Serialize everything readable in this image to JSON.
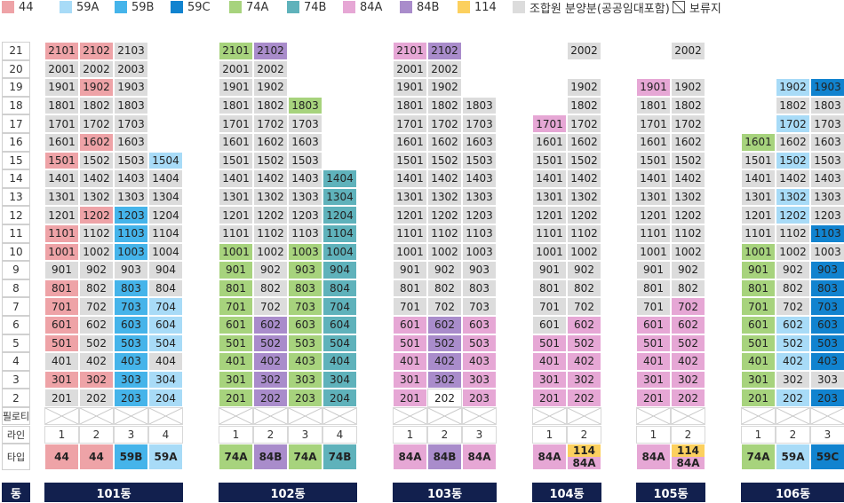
{
  "legend": [
    {
      "label": "44",
      "color": "#eea3a7",
      "icon": null
    },
    {
      "label": "59A",
      "color": "#a8dbf7",
      "icon": null
    },
    {
      "label": "59B",
      "color": "#45b4ea",
      "icon": null
    },
    {
      "label": "59C",
      "color": "#1183cf",
      "icon": null
    },
    {
      "label": "74A",
      "color": "#a7d37d",
      "icon": null
    },
    {
      "label": "74B",
      "color": "#5fb2bb",
      "icon": null
    },
    {
      "label": "84A",
      "color": "#e6a7d5",
      "icon": null
    },
    {
      "label": "84B",
      "color": "#a98ccb",
      "icon": null
    },
    {
      "label": "114",
      "color": "#fcd05e",
      "icon": null
    },
    {
      "label": "조합원 분양분(공공임대포함)",
      "color": "#dcdcdc",
      "icon": null
    },
    {
      "label": "보류지",
      "color": "#ffffff",
      "icon": "hatched-box-icon"
    }
  ],
  "colors": {
    "44": "#eea3a7",
    "59A": "#a8dbf7",
    "59B": "#45b4ea",
    "59C": "#1183cf",
    "74A": "#a7d37d",
    "74B": "#5fb2bb",
    "84A": "#e6a7d5",
    "84B": "#a98ccb",
    "114": "#fcd05e",
    "G": "#dcdcdc",
    "R": "#ffffff",
    "navy": "#12204e"
  },
  "row_labels": {
    "floors": [
      "21",
      "20",
      "19",
      "18",
      "17",
      "16",
      "15",
      "14",
      "13",
      "12",
      "11",
      "10",
      "9",
      "8",
      "7",
      "6",
      "5",
      "4",
      "3",
      "2"
    ],
    "piloti": "필로티",
    "line": "라인",
    "type": "타입",
    "dong": "동"
  },
  "buildings": [
    {
      "name": "101동",
      "lines": [
        "1",
        "2",
        "3",
        "4"
      ],
      "types": [
        {
          "text": "44",
          "c": "44"
        },
        {
          "text": "44",
          "c": "44"
        },
        {
          "text": "59B",
          "c": "59B"
        },
        {
          "text": "59A",
          "c": "59A"
        }
      ],
      "units": [
        [
          "2101:44",
          "2102:44",
          "2103:G",
          null
        ],
        [
          "2001:G",
          "2002:G",
          "2003:G",
          null
        ],
        [
          "1901:G",
          "1902:44",
          "1903:G",
          null
        ],
        [
          "1801:G",
          "1802:G",
          "1803:G",
          null
        ],
        [
          "1701:G",
          "1702:G",
          "1703:G",
          null
        ],
        [
          "1601:G",
          "1602:44",
          "1603:G",
          null
        ],
        [
          "1501:44",
          "1502:G",
          "1503:G",
          "1504:59A"
        ],
        [
          "1401:G",
          "1402:G",
          "1403:G",
          "1404:G"
        ],
        [
          "1301:G",
          "1302:G",
          "1303:G",
          "1304:G"
        ],
        [
          "1201:G",
          "1202:44",
          "1203:59B",
          "1204:G"
        ],
        [
          "1101:44",
          "1102:G",
          "1103:59B",
          "1104:G"
        ],
        [
          "1001:44",
          "1002:G",
          "1003:59B",
          "1004:G"
        ],
        [
          "901:G",
          "902:G",
          "903:G",
          "904:G"
        ],
        [
          "801:44",
          "802:G",
          "803:59B",
          "804:G"
        ],
        [
          "701:44",
          "702:G",
          "703:59B",
          "704:59A"
        ],
        [
          "601:44",
          "602:G",
          "603:59B",
          "604:59A"
        ],
        [
          "501:44",
          "502:G",
          "503:59B",
          "504:59A"
        ],
        [
          "401:G",
          "402:G",
          "403:59B",
          "404:G"
        ],
        [
          "301:44",
          "302:44",
          "303:59B",
          "304:59A"
        ],
        [
          "201:G",
          "202:G",
          "203:59B",
          "204:59A"
        ]
      ]
    },
    {
      "name": "102동",
      "lines": [
        "1",
        "2",
        "3",
        "4"
      ],
      "types": [
        {
          "text": "74A",
          "c": "74A"
        },
        {
          "text": "84B",
          "c": "84B"
        },
        {
          "text": "74A",
          "c": "74A"
        },
        {
          "text": "74B",
          "c": "74B"
        }
      ],
      "units": [
        [
          "2101:74A",
          "2102:84B",
          null,
          null
        ],
        [
          "2001:G",
          "2002:G",
          null,
          null
        ],
        [
          "1901:G",
          "1902:G",
          null,
          null
        ],
        [
          "1801:G",
          "1802:G",
          "1803:74A",
          null
        ],
        [
          "1701:G",
          "1702:G",
          "1703:G",
          null
        ],
        [
          "1601:G",
          "1602:G",
          "1603:G",
          null
        ],
        [
          "1501:G",
          "1502:G",
          "1503:G",
          null
        ],
        [
          "1401:G",
          "1402:G",
          "1403:G",
          "1404:74B"
        ],
        [
          "1301:G",
          "1302:G",
          "1303:G",
          "1304:74B"
        ],
        [
          "1201:G",
          "1202:G",
          "1203:G",
          "1204:74B"
        ],
        [
          "1101:G",
          "1102:G",
          "1103:G",
          "1104:74B"
        ],
        [
          "1001:74A",
          "1002:G",
          "1003:74A",
          "1004:74B"
        ],
        [
          "901:74A",
          "902:G",
          "903:74A",
          "904:74B"
        ],
        [
          "801:74A",
          "802:G",
          "803:74A",
          "804:74B"
        ],
        [
          "701:74A",
          "702:G",
          "703:74A",
          "704:74B"
        ],
        [
          "601:74A",
          "602:84B",
          "603:74A",
          "604:74B"
        ],
        [
          "501:74A",
          "502:84B",
          "503:74A",
          "504:74B"
        ],
        [
          "401:74A",
          "402:84B",
          "403:74A",
          "404:74B"
        ],
        [
          "301:74A",
          "302:84B",
          "303:74A",
          "304:74B"
        ],
        [
          "201:74A",
          "202:84B",
          "203:74A",
          "204:74B"
        ]
      ]
    },
    {
      "name": "103동",
      "lines": [
        "1",
        "2",
        "3"
      ],
      "types": [
        {
          "text": "84A",
          "c": "84A"
        },
        {
          "text": "84B",
          "c": "84B"
        },
        {
          "text": "84A",
          "c": "84A"
        }
      ],
      "units": [
        [
          "2101:84A",
          "2102:84B",
          null
        ],
        [
          "2001:G",
          "2002:G",
          null
        ],
        [
          "1901:G",
          "1902:G",
          null
        ],
        [
          "1801:G",
          "1802:G",
          "1803:G"
        ],
        [
          "1701:G",
          "1702:G",
          "1703:G"
        ],
        [
          "1601:G",
          "1602:G",
          "1603:G"
        ],
        [
          "1501:G",
          "1502:G",
          "1503:G"
        ],
        [
          "1401:G",
          "1402:G",
          "1403:G"
        ],
        [
          "1301:G",
          "1302:G",
          "1303:G"
        ],
        [
          "1201:G",
          "1202:G",
          "1203:G"
        ],
        [
          "1101:G",
          "1102:G",
          "1103:G"
        ],
        [
          "1001:G",
          "1002:G",
          "1003:G"
        ],
        [
          "901:G",
          "902:G",
          "903:G"
        ],
        [
          "801:G",
          "802:G",
          "803:G"
        ],
        [
          "701:G",
          "702:G",
          "703:G"
        ],
        [
          "601:84A",
          "602:84B",
          "603:84A"
        ],
        [
          "501:84A",
          "502:84B",
          "503:84A"
        ],
        [
          "401:84A",
          "402:84B",
          "403:84A"
        ],
        [
          "301:84A",
          "302:84B",
          "303:84A"
        ],
        [
          "201:84A",
          "202:R",
          "203:84A"
        ]
      ]
    },
    {
      "name": "104동",
      "lines": [
        "1",
        "2"
      ],
      "types": [
        {
          "text": "84A",
          "c": "84A"
        },
        {
          "top": "114",
          "bottom": "84A",
          "ct": "114",
          "cb": "84A"
        }
      ],
      "units": [
        [
          null,
          "2002:G"
        ],
        [
          null,
          null
        ],
        [
          null,
          "1902:G"
        ],
        [
          null,
          "1802:G"
        ],
        [
          "1701:84A",
          "1702:G"
        ],
        [
          "1601:G",
          "1602:G"
        ],
        [
          "1501:G",
          "1502:G"
        ],
        [
          "1401:G",
          "1402:G"
        ],
        [
          "1301:G",
          "1302:G"
        ],
        [
          "1201:G",
          "1202:G"
        ],
        [
          "1101:G",
          "1102:G"
        ],
        [
          "1001:G",
          "1002:G"
        ],
        [
          "901:G",
          "902:G"
        ],
        [
          "801:G",
          "802:G"
        ],
        [
          "701:G",
          "702:G"
        ],
        [
          "601:G",
          "602:84A"
        ],
        [
          "501:84A",
          "502:84A"
        ],
        [
          "401:84A",
          "402:84A"
        ],
        [
          "301:84A",
          "302:84A"
        ],
        [
          "201:84A",
          "202:84A"
        ]
      ]
    },
    {
      "name": "105동",
      "lines": [
        "1",
        "2"
      ],
      "types": [
        {
          "text": "84A",
          "c": "84A"
        },
        {
          "top": "114",
          "bottom": "84A",
          "ct": "114",
          "cb": "84A"
        }
      ],
      "units": [
        [
          null,
          "2002:G"
        ],
        [
          null,
          null
        ],
        [
          "1901:84A",
          "1902:G"
        ],
        [
          "1801:G",
          "1802:G"
        ],
        [
          "1701:G",
          "1702:G"
        ],
        [
          "1601:G",
          "1602:G"
        ],
        [
          "1501:G",
          "1502:G"
        ],
        [
          "1401:G",
          "1402:G"
        ],
        [
          "1301:G",
          "1302:G"
        ],
        [
          "1201:G",
          "1202:G"
        ],
        [
          "1101:G",
          "1102:G"
        ],
        [
          "1001:G",
          "1002:G"
        ],
        [
          "901:G",
          "902:G"
        ],
        [
          "801:G",
          "802:G"
        ],
        [
          "701:G",
          "702:84A"
        ],
        [
          "601:84A",
          "602:84A"
        ],
        [
          "501:84A",
          "502:84A"
        ],
        [
          "401:84A",
          "402:84A"
        ],
        [
          "301:84A",
          "302:84A"
        ],
        [
          "201:84A",
          "202:84A"
        ]
      ]
    },
    {
      "name": "106동",
      "lines": [
        "1",
        "2",
        "3"
      ],
      "types": [
        {
          "text": "74A",
          "c": "74A"
        },
        {
          "text": "59A",
          "c": "59A"
        },
        {
          "text": "59C",
          "c": "59C"
        }
      ],
      "units": [
        [
          null,
          null,
          null
        ],
        [
          null,
          null,
          null
        ],
        [
          null,
          "1902:59A",
          "1903:59C"
        ],
        [
          null,
          "1802:G",
          "1803:G"
        ],
        [
          null,
          "1702:59A",
          "1703:G"
        ],
        [
          "1601:74A",
          "1602:G",
          "1603:G"
        ],
        [
          "1501:G",
          "1502:59A",
          "1503:G"
        ],
        [
          "1401:G",
          "1402:G",
          "1403:G"
        ],
        [
          "1301:G",
          "1302:59A",
          "1303:G"
        ],
        [
          "1201:G",
          "1202:59A",
          "1203:G"
        ],
        [
          "1101:G",
          "1102:G",
          "1103:59C"
        ],
        [
          "1001:74A",
          "1002:G",
          "1003:G"
        ],
        [
          "901:74A",
          "902:G",
          "903:59C"
        ],
        [
          "801:74A",
          "802:G",
          "803:59C"
        ],
        [
          "701:74A",
          "702:G",
          "703:59C"
        ],
        [
          "601:74A",
          "602:59A",
          "603:59C"
        ],
        [
          "501:74A",
          "502:59A",
          "503:59C"
        ],
        [
          "401:74A",
          "402:59A",
          "403:59C"
        ],
        [
          "301:74A",
          "302:G",
          "303:G"
        ],
        [
          "201:74A",
          "202:59A",
          "203:59C"
        ]
      ]
    }
  ]
}
